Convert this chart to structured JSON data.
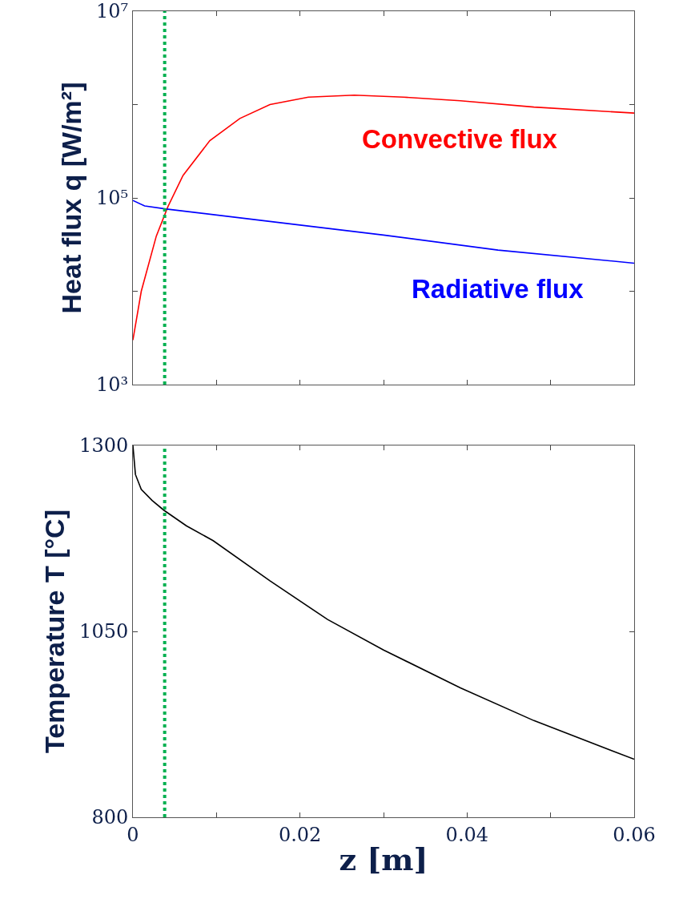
{
  "chart_data": [
    {
      "type": "line",
      "ylabel": "Heat flux q [W/m²]",
      "log": "y",
      "tick_labels": "y",
      "grid": false,
      "xlim": [
        0,
        0.06
      ],
      "xticks": [
        0,
        {
          "value": 0.01,
          "label": null
        },
        0.02,
        {
          "value": 0.03,
          "label": null
        },
        0.04,
        {
          "value": 0.05,
          "label": null
        },
        0.06
      ],
      "ylim": [
        1000,
        10000000
      ],
      "yticks": [
        {
          "value": 1000,
          "label": "10³"
        },
        {
          "value": 10000,
          "label": null
        },
        {
          "value": 100000,
          "label": "10⁵"
        },
        {
          "value": 1000000,
          "label": null
        },
        {
          "value": 10000000,
          "label": "10⁷"
        }
      ],
      "series": [
        {
          "name": "Convective flux",
          "color": "#ff0000",
          "x": [
            0,
            0.001,
            0.0028,
            0.0042,
            0.006,
            0.0092,
            0.0128,
            0.0164,
            0.021,
            0.0265,
            0.0324,
            0.0392,
            0.048,
            0.06
          ],
          "values": [
            3000,
            10000,
            39000,
            81000,
            174000,
            410000,
            710000,
            1000000,
            1200000,
            1260000,
            1200000,
            1100000,
            940000,
            810000
          ]
        },
        {
          "name": "Radiative flux",
          "color": "#0000ff",
          "x": [
            0,
            0.0014,
            0.004,
            0.0164,
            0.03,
            0.0437,
            0.06
          ],
          "values": [
            94000,
            82000,
            76000,
            56000,
            40000,
            27600,
            20000
          ]
        }
      ],
      "ref_lines": [
        {
          "axis": "x",
          "value": 0.0038,
          "color": "#00b050",
          "line_style": "dotted"
        }
      ]
    },
    {
      "type": "line",
      "xlabel": "z [m]",
      "ylabel": "Temperature T [°C]",
      "grid": false,
      "xlim": [
        0,
        0.06
      ],
      "xticks": [
        0,
        {
          "value": 0.01,
          "label": null
        },
        0.02,
        {
          "value": 0.03,
          "label": null
        },
        0.04,
        {
          "value": 0.05,
          "label": null
        },
        0.06
      ],
      "ylim": [
        800,
        1300
      ],
      "yticks": [
        800,
        1050,
        1300
      ],
      "series": [
        {
          "color": "#000000",
          "x": [
            0,
            0.0003,
            0.001,
            0.0023,
            0.0037,
            0.0064,
            0.0096,
            0.0164,
            0.0233,
            0.03,
            0.0392,
            0.048,
            0.06
          ],
          "values": [
            1300,
            1261,
            1241,
            1226,
            1213,
            1192,
            1172,
            1118,
            1066,
            1025,
            974,
            930,
            878
          ]
        }
      ],
      "ref_lines": [
        {
          "axis": "x",
          "value": 0.0038,
          "color": "#00b050",
          "line_style": "dotted"
        }
      ]
    }
  ]
}
